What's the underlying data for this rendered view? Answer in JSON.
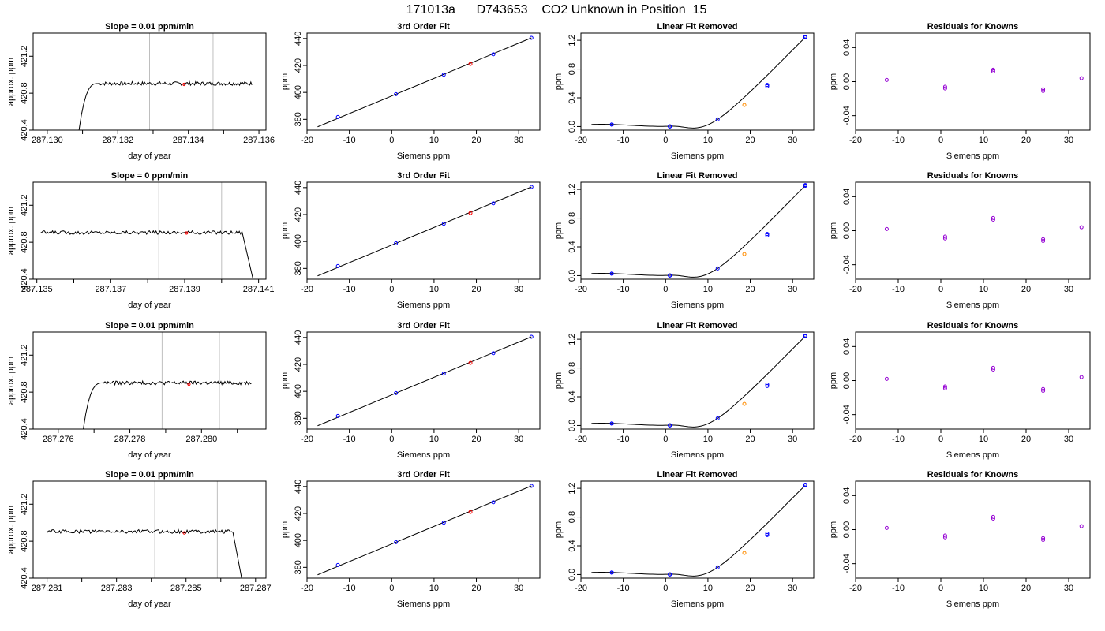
{
  "title": "171013a      D743653    CO2 Unknown in Position  15",
  "colors": {
    "known": "#0000ff",
    "unknown": "#ff0000",
    "unknown_resid": "#ff8c00",
    "resid": "#9400d3",
    "vline": "#bebebe",
    "line": "#000000"
  },
  "chart_data": [
    {
      "type": "line",
      "title": "Slope =  0.01  ppm/min",
      "xlabel": "day of year",
      "ylabel": "approx. ppm",
      "xlim": [
        287.1296,
        287.1362
      ],
      "ylim": [
        420.4,
        421.45
      ],
      "xticks": [
        "287.130",
        "287.132",
        "287.134",
        "287.136"
      ],
      "xtick_values": [
        287.13,
        287.132,
        287.134,
        287.136
      ],
      "xtick_minor": [
        287.131,
        287.133,
        287.135
      ],
      "yticks": [
        "420.4",
        "420.8",
        "421.2"
      ],
      "ytick_values": [
        420.4,
        420.8,
        421.2
      ],
      "trace": {
        "x_start": 287.1309,
        "x_plateau": 287.13145,
        "x_end": 287.1358,
        "start_value": 420.4,
        "level": 420.905,
        "noise": 0.02,
        "end_value": null,
        "x_drop": null
      },
      "vlines": [
        287.1329,
        287.1347
      ],
      "marker": {
        "x": 287.13388,
        "y": 420.895
      }
    },
    {
      "type": "scatter",
      "title": "3rd Order Fit",
      "xlabel": "Siemens ppm",
      "ylabel": "ppm",
      "xlim": [
        -20,
        35
      ],
      "ylim": [
        372,
        444
      ],
      "xticks": [
        "-20",
        "-10",
        "0",
        "10",
        "20",
        "30"
      ],
      "xtick_values": [
        -20,
        -10,
        0,
        10,
        20,
        30
      ],
      "yticks": [
        "380",
        "400",
        "420",
        "440"
      ],
      "ytick_values": [
        380,
        400,
        420,
        440
      ],
      "fit": [
        [
          -17.5,
          374.5
        ],
        [
          33,
          440.5
        ]
      ],
      "knowns": [
        [
          -12.7,
          381.7
        ],
        [
          1,
          398.7
        ],
        [
          12.3,
          413.1
        ],
        [
          24,
          428.3
        ],
        [
          33,
          440.5
        ]
      ],
      "unknown": [
        18.6,
        421.1
      ]
    },
    {
      "type": "scatter",
      "title": "Linear Fit Removed",
      "xlabel": "Siemens ppm",
      "ylabel": "ppm",
      "xlim": [
        -20,
        35
      ],
      "ylim": [
        -0.05,
        1.3
      ],
      "xticks": [
        "-20",
        "-10",
        "0",
        "10",
        "20",
        "30"
      ],
      "xtick_values": [
        -20,
        -10,
        0,
        10,
        20,
        30
      ],
      "yticks": [
        "0.0",
        "0.4",
        "0.8",
        "1.2"
      ],
      "ytick_values": [
        0.0,
        0.4,
        0.8,
        1.2
      ],
      "curve_start": -17.5,
      "curve_points": [
        [
          -12.7,
          0.03
        ],
        [
          1,
          0.005
        ],
        [
          12.3,
          0.1
        ],
        [
          33,
          1.24
        ]
      ],
      "knowns": [
        [
          -12.7,
          0.03
        ],
        [
          -12.7,
          0.025
        ],
        [
          1,
          0.005
        ],
        [
          1,
          0.0
        ],
        [
          12.3,
          0.1
        ],
        [
          24,
          0.56
        ],
        [
          24,
          0.58
        ],
        [
          33,
          1.24
        ],
        [
          33,
          1.25
        ]
      ],
      "unknown": [
        18.6,
        0.3
      ]
    },
    {
      "type": "scatter",
      "title": "Residuals for Knowns",
      "xlabel": "Siemens ppm",
      "ylabel": "ppm",
      "xlim": [
        -20,
        35
      ],
      "ylim": [
        -0.057,
        0.057
      ],
      "xticks": [
        "-20",
        "-10",
        "0",
        "10",
        "20",
        "30"
      ],
      "xtick_values": [
        -20,
        -10,
        0,
        10,
        20,
        30
      ],
      "yticks": [
        "-0.04",
        "0.00",
        "0.04"
      ],
      "ytick_values": [
        -0.04,
        0.0,
        0.04
      ],
      "knowns": [
        [
          -12.7,
          0.002
        ],
        [
          1,
          -0.006
        ],
        [
          1,
          -0.008
        ],
        [
          12.3,
          0.012
        ],
        [
          12.3,
          0.014
        ],
        [
          24,
          -0.009
        ],
        [
          24,
          -0.011
        ],
        [
          33,
          0.004
        ]
      ]
    },
    {
      "type": "line",
      "title": "Slope =  0  ppm/min",
      "xlabel": "day of year",
      "ylabel": "approx. ppm",
      "xlim": [
        287.1349,
        287.1412
      ],
      "ylim": [
        420.4,
        421.45
      ],
      "xticks": [
        "287.135",
        "287.137",
        "287.139",
        "287.141"
      ],
      "xtick_values": [
        287.135,
        287.137,
        287.139,
        287.141
      ],
      "xtick_minor": [
        287.136,
        287.138,
        287.14
      ],
      "yticks": [
        "420.4",
        "420.8",
        "421.2"
      ],
      "ytick_values": [
        420.4,
        420.8,
        421.2
      ],
      "trace": {
        "x_start": 287.1351,
        "x_plateau": 287.1351,
        "x_end": 287.14055,
        "start_value": 420.91,
        "level": 420.905,
        "noise": 0.02,
        "end_value": 420.4,
        "x_drop": 287.14085
      },
      "vlines": [
        287.1383,
        287.14
      ],
      "marker": {
        "x": 287.13905,
        "y": 420.9
      }
    },
    {
      "type": "scatter",
      "title": "3rd Order Fit",
      "xlabel": "Siemens ppm",
      "ylabel": "ppm",
      "xlim": [
        -20,
        35
      ],
      "ylim": [
        372,
        444
      ],
      "xticks": [
        "-20",
        "-10",
        "0",
        "10",
        "20",
        "30"
      ],
      "xtick_values": [
        -20,
        -10,
        0,
        10,
        20,
        30
      ],
      "yticks": [
        "380",
        "400",
        "420",
        "440"
      ],
      "ytick_values": [
        380,
        400,
        420,
        440
      ],
      "fit": [
        [
          -17.5,
          374.5
        ],
        [
          33,
          440.5
        ]
      ],
      "knowns": [
        [
          -12.7,
          381.7
        ],
        [
          1,
          398.7
        ],
        [
          12.3,
          413.1
        ],
        [
          24,
          428.3
        ],
        [
          33,
          440.5
        ]
      ],
      "unknown": [
        18.6,
        421.1
      ]
    },
    {
      "type": "scatter",
      "title": "Linear Fit Removed",
      "xlabel": "Siemens ppm",
      "ylabel": "ppm",
      "xlim": [
        -20,
        35
      ],
      "ylim": [
        -0.05,
        1.3
      ],
      "xticks": [
        "-20",
        "-10",
        "0",
        "10",
        "20",
        "30"
      ],
      "xtick_values": [
        -20,
        -10,
        0,
        10,
        20,
        30
      ],
      "yticks": [
        "0.0",
        "0.4",
        "0.8",
        "1.2"
      ],
      "ytick_values": [
        0.0,
        0.4,
        0.8,
        1.2
      ],
      "curve_start": -17.5,
      "curve_points": [
        [
          -12.7,
          0.03
        ],
        [
          1,
          0.005
        ],
        [
          12.3,
          0.1
        ],
        [
          33,
          1.25
        ]
      ],
      "knowns": [
        [
          -12.7,
          0.03
        ],
        [
          -12.7,
          0.025
        ],
        [
          1,
          0.005
        ],
        [
          1,
          0.0
        ],
        [
          12.3,
          0.1
        ],
        [
          24,
          0.56
        ],
        [
          24,
          0.58
        ],
        [
          33,
          1.25
        ],
        [
          33,
          1.26
        ]
      ],
      "unknown": [
        18.6,
        0.3
      ]
    },
    {
      "type": "scatter",
      "title": "Residuals for Knowns",
      "xlabel": "Siemens ppm",
      "ylabel": "ppm",
      "xlim": [
        -20,
        35
      ],
      "ylim": [
        -0.057,
        0.057
      ],
      "xticks": [
        "-20",
        "-10",
        "0",
        "10",
        "20",
        "30"
      ],
      "xtick_values": [
        -20,
        -10,
        0,
        10,
        20,
        30
      ],
      "yticks": [
        "-0.04",
        "0.00",
        "0.04"
      ],
      "ytick_values": [
        -0.04,
        0.0,
        0.04
      ],
      "knowns": [
        [
          -12.7,
          0.002
        ],
        [
          1,
          -0.007
        ],
        [
          1,
          -0.009
        ],
        [
          12.3,
          0.013
        ],
        [
          12.3,
          0.015
        ],
        [
          24,
          -0.01
        ],
        [
          24,
          -0.012
        ],
        [
          33,
          0.004
        ]
      ]
    },
    {
      "type": "line",
      "title": "Slope =  0.01  ppm/min",
      "xlabel": "day of year",
      "ylabel": "approx. ppm",
      "xlim": [
        287.2753,
        287.2818
      ],
      "ylim": [
        420.4,
        421.45
      ],
      "xticks": [
        "287.276",
        "287.278",
        "287.280"
      ],
      "xtick_values": [
        287.276,
        287.278,
        287.28
      ],
      "xtick_minor": [
        287.277,
        287.279,
        287.281
      ],
      "yticks": [
        "420.4",
        "420.8",
        "421.2"
      ],
      "ytick_values": [
        420.4,
        420.8,
        421.2
      ],
      "trace": {
        "x_start": 287.2767,
        "x_plateau": 287.27725,
        "x_end": 287.2814,
        "start_value": 420.4,
        "level": 420.9,
        "noise": 0.02,
        "end_value": null,
        "x_drop": null
      },
      "vlines": [
        287.2789,
        287.2805
      ],
      "marker": {
        "x": 287.27965,
        "y": 420.885
      }
    },
    {
      "type": "scatter",
      "title": "3rd Order Fit",
      "xlabel": "Siemens ppm",
      "ylabel": "ppm",
      "xlim": [
        -20,
        35
      ],
      "ylim": [
        372,
        444
      ],
      "xticks": [
        "-20",
        "-10",
        "0",
        "10",
        "20",
        "30"
      ],
      "xtick_values": [
        -20,
        -10,
        0,
        10,
        20,
        30
      ],
      "yticks": [
        "380",
        "400",
        "420",
        "440"
      ],
      "ytick_values": [
        380,
        400,
        420,
        440
      ],
      "fit": [
        [
          -17.5,
          374.5
        ],
        [
          33,
          440.5
        ]
      ],
      "knowns": [
        [
          -12.7,
          381.7
        ],
        [
          1,
          398.7
        ],
        [
          12.3,
          413.1
        ],
        [
          24,
          428.3
        ],
        [
          33,
          440.5
        ]
      ],
      "unknown": [
        18.6,
        421.1
      ]
    },
    {
      "type": "scatter",
      "title": "Linear Fit Removed",
      "xlabel": "Siemens ppm",
      "ylabel": "ppm",
      "xlim": [
        -20,
        35
      ],
      "ylim": [
        -0.05,
        1.3
      ],
      "xticks": [
        "-20",
        "-10",
        "0",
        "10",
        "20",
        "30"
      ],
      "xtick_values": [
        -20,
        -10,
        0,
        10,
        20,
        30
      ],
      "yticks": [
        "0.0",
        "0.4",
        "0.8",
        "1.2"
      ],
      "ytick_values": [
        0.0,
        0.4,
        0.8,
        1.2
      ],
      "curve_start": -17.5,
      "curve_points": [
        [
          -12.7,
          0.03
        ],
        [
          1,
          0.005
        ],
        [
          12.3,
          0.1
        ],
        [
          33,
          1.24
        ]
      ],
      "knowns": [
        [
          -12.7,
          0.03
        ],
        [
          -12.7,
          0.025
        ],
        [
          1,
          0.005
        ],
        [
          1,
          0.0
        ],
        [
          12.3,
          0.1
        ],
        [
          24,
          0.55
        ],
        [
          24,
          0.57
        ],
        [
          33,
          1.24
        ],
        [
          33,
          1.25
        ]
      ],
      "unknown": [
        18.6,
        0.3
      ]
    },
    {
      "type": "scatter",
      "title": "Residuals for Knowns",
      "xlabel": "Siemens ppm",
      "ylabel": "ppm",
      "xlim": [
        -20,
        35
      ],
      "ylim": [
        -0.057,
        0.057
      ],
      "xticks": [
        "-20",
        "-10",
        "0",
        "10",
        "20",
        "30"
      ],
      "xtick_values": [
        -20,
        -10,
        0,
        10,
        20,
        30
      ],
      "yticks": [
        "-0.04",
        "0.00",
        "0.04"
      ],
      "ytick_values": [
        -0.04,
        0.0,
        0.04
      ],
      "knowns": [
        [
          -12.7,
          0.002
        ],
        [
          1,
          -0.007
        ],
        [
          1,
          -0.009
        ],
        [
          12.3,
          0.013
        ],
        [
          12.3,
          0.015
        ],
        [
          24,
          -0.01
        ],
        [
          24,
          -0.012
        ],
        [
          33,
          0.004
        ]
      ]
    },
    {
      "type": "line",
      "title": "Slope =  0.01  ppm/min",
      "xlabel": "day of year",
      "ylabel": "approx. ppm",
      "xlim": [
        287.2806,
        287.2873
      ],
      "ylim": [
        420.4,
        421.45
      ],
      "xticks": [
        "287.281",
        "287.283",
        "287.285",
        "287.287"
      ],
      "xtick_values": [
        287.281,
        287.283,
        287.285,
        287.287
      ],
      "xtick_minor": [
        287.282,
        287.284,
        287.286
      ],
      "yticks": [
        "420.4",
        "420.8",
        "421.2"
      ],
      "ytick_values": [
        420.4,
        420.8,
        421.2
      ],
      "trace": {
        "x_start": 287.281,
        "x_plateau": 287.281,
        "x_end": 287.28635,
        "start_value": 420.9,
        "level": 420.905,
        "noise": 0.02,
        "end_value": 420.4,
        "x_drop": 287.2866
      },
      "vlines": [
        287.2841,
        287.2859
      ],
      "marker": {
        "x": 287.28495,
        "y": 420.89
      }
    },
    {
      "type": "scatter",
      "title": "3rd Order Fit",
      "xlabel": "Siemens ppm",
      "ylabel": "ppm",
      "xlim": [
        -20,
        35
      ],
      "ylim": [
        372,
        444
      ],
      "xticks": [
        "-20",
        "-10",
        "0",
        "10",
        "20",
        "30"
      ],
      "xtick_values": [
        -20,
        -10,
        0,
        10,
        20,
        30
      ],
      "yticks": [
        "380",
        "400",
        "420",
        "440"
      ],
      "ytick_values": [
        380,
        400,
        420,
        440
      ],
      "fit": [
        [
          -17.5,
          374.5
        ],
        [
          33,
          440.5
        ]
      ],
      "knowns": [
        [
          -12.7,
          381.7
        ],
        [
          1,
          398.7
        ],
        [
          12.3,
          413.1
        ],
        [
          24,
          428.3
        ],
        [
          33,
          440.5
        ]
      ],
      "unknown": [
        18.6,
        421.1
      ]
    },
    {
      "type": "scatter",
      "title": "Linear Fit Removed",
      "xlabel": "Siemens ppm",
      "ylabel": "ppm",
      "xlim": [
        -20,
        35
      ],
      "ylim": [
        -0.05,
        1.3
      ],
      "xticks": [
        "-20",
        "-10",
        "0",
        "10",
        "20",
        "30"
      ],
      "xtick_values": [
        -20,
        -10,
        0,
        10,
        20,
        30
      ],
      "yticks": [
        "0.0",
        "0.4",
        "0.8",
        "1.2"
      ],
      "ytick_values": [
        0.0,
        0.4,
        0.8,
        1.2
      ],
      "curve_start": -17.5,
      "curve_points": [
        [
          -12.7,
          0.03
        ],
        [
          1,
          0.005
        ],
        [
          12.3,
          0.1
        ],
        [
          33,
          1.24
        ]
      ],
      "knowns": [
        [
          -12.7,
          0.03
        ],
        [
          -12.7,
          0.025
        ],
        [
          1,
          0.005
        ],
        [
          1,
          0.0
        ],
        [
          12.3,
          0.1
        ],
        [
          24,
          0.55
        ],
        [
          24,
          0.57
        ],
        [
          33,
          1.24
        ],
        [
          33,
          1.25
        ]
      ],
      "unknown": [
        18.6,
        0.3
      ]
    },
    {
      "type": "scatter",
      "title": "Residuals for Knowns",
      "xlabel": "Siemens ppm",
      "ylabel": "ppm",
      "xlim": [
        -20,
        35
      ],
      "ylim": [
        -0.057,
        0.057
      ],
      "xticks": [
        "-20",
        "-10",
        "0",
        "10",
        "20",
        "30"
      ],
      "xtick_values": [
        -20,
        -10,
        0,
        10,
        20,
        30
      ],
      "yticks": [
        "-0.04",
        "0.00",
        "0.04"
      ],
      "ytick_values": [
        -0.04,
        0.0,
        0.04
      ],
      "knowns": [
        [
          -12.7,
          0.002
        ],
        [
          1,
          -0.007
        ],
        [
          1,
          -0.009
        ],
        [
          12.3,
          0.013
        ],
        [
          12.3,
          0.015
        ],
        [
          24,
          -0.01
        ],
        [
          24,
          -0.012
        ],
        [
          33,
          0.004
        ]
      ]
    }
  ]
}
